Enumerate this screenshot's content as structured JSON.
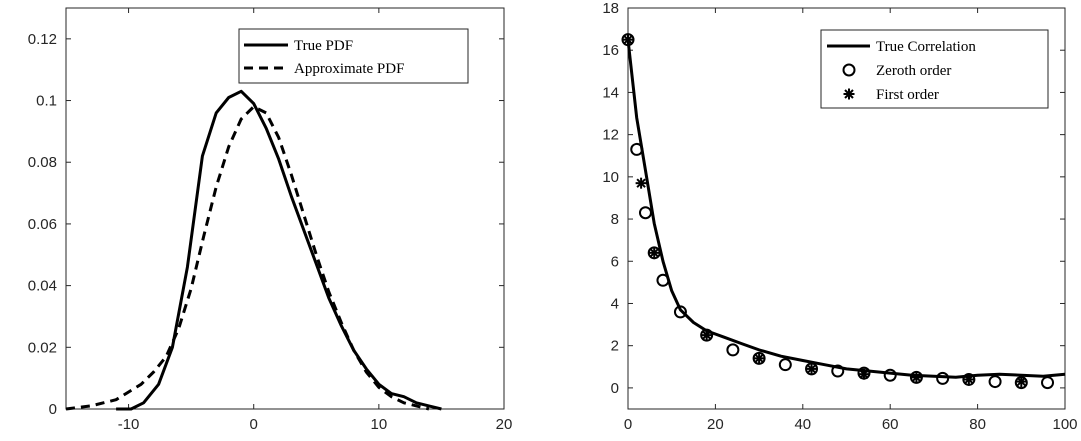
{
  "chart_data": [
    {
      "type": "line",
      "xlim": [
        -15,
        20
      ],
      "ylim": [
        0,
        0.13
      ],
      "xticks": [
        -10,
        0,
        10,
        20
      ],
      "xtick_labels": [
        "-10",
        "0",
        "10",
        "20"
      ],
      "yticks": [
        0,
        0.02,
        0.04,
        0.06,
        0.08,
        0.1,
        0.12
      ],
      "ytick_labels": [
        "0",
        "0.02",
        "0.04",
        "0.06",
        "0.08",
        "0.1",
        "0.12"
      ],
      "grid": false,
      "legend_position": "top-right",
      "series": [
        {
          "name": "True PDF",
          "style": "solid",
          "x": [
            -11,
            -9.8,
            -8.8,
            -7.6,
            -6.5,
            -5.3,
            -4.1,
            -3,
            -2,
            -1,
            0,
            1,
            2,
            3,
            4,
            5,
            6,
            7,
            8,
            9,
            10,
            11,
            12,
            13,
            14,
            15
          ],
          "y": [
            0,
            0,
            0.002,
            0.008,
            0.02,
            0.046,
            0.082,
            0.096,
            0.101,
            0.103,
            0.099,
            0.091,
            0.081,
            0.069,
            0.058,
            0.047,
            0.036,
            0.027,
            0.019,
            0.013,
            0.008,
            0.005,
            0.004,
            0.002,
            0.001,
            0
          ]
        },
        {
          "name": "Approximate PDF",
          "style": "dashed",
          "x": [
            -15,
            -13,
            -11,
            -9,
            -8,
            -7,
            -6,
            -5,
            -4,
            -3,
            -2,
            -1,
            0,
            1,
            2,
            3,
            4,
            5,
            6,
            7,
            8,
            9,
            10,
            11,
            12,
            13,
            14
          ],
          "y": [
            0,
            0.001,
            0.003,
            0.008,
            0.012,
            0.017,
            0.026,
            0.039,
            0.056,
            0.072,
            0.085,
            0.094,
            0.098,
            0.096,
            0.088,
            0.076,
            0.063,
            0.05,
            0.038,
            0.028,
            0.019,
            0.012,
            0.007,
            0.004,
            0.002,
            0.001,
            0
          ]
        }
      ]
    },
    {
      "type": "line",
      "xlim": [
        0,
        100
      ],
      "ylim": [
        -1,
        18
      ],
      "xticks": [
        0,
        20,
        40,
        60,
        80,
        100
      ],
      "xtick_labels": [
        "0",
        "20",
        "40",
        "60",
        "80",
        "100"
      ],
      "yticks": [
        0,
        2,
        4,
        6,
        8,
        10,
        12,
        14,
        16,
        18
      ],
      "ytick_labels": [
        "0",
        "2",
        "4",
        "6",
        "8",
        "10",
        "12",
        "14",
        "16",
        "18"
      ],
      "grid": false,
      "legend_position": "top-right",
      "series": [
        {
          "name": "True Correlation",
          "style": "solid",
          "x": [
            0,
            2,
            4,
            6,
            8,
            10,
            12,
            15,
            18,
            22,
            26,
            30,
            35,
            40,
            45,
            50,
            55,
            60,
            65,
            70,
            75,
            80,
            85,
            90,
            95,
            100
          ],
          "y": [
            16.5,
            12.8,
            10.3,
            7.8,
            6,
            4.6,
            3.7,
            3.1,
            2.7,
            2.4,
            2.1,
            1.8,
            1.5,
            1.3,
            1.1,
            0.9,
            0.8,
            0.7,
            0.6,
            0.55,
            0.5,
            0.6,
            0.65,
            0.6,
            0.55,
            0.65
          ]
        },
        {
          "name": "Zeroth order",
          "style": "marker-circle",
          "x": [
            0,
            2,
            4,
            6,
            8,
            12,
            18,
            24,
            30,
            36,
            42,
            48,
            54,
            60,
            66,
            72,
            78,
            84,
            90,
            96
          ],
          "y": [
            16.5,
            11.3,
            8.3,
            6.4,
            5.1,
            3.6,
            2.5,
            1.8,
            1.4,
            1.1,
            0.9,
            0.8,
            0.7,
            0.6,
            0.5,
            0.45,
            0.4,
            0.3,
            0.25,
            0.25
          ]
        },
        {
          "name": "First order",
          "style": "marker-asterisk",
          "x": [
            0,
            3,
            6,
            18,
            30,
            42,
            54,
            66,
            78,
            90
          ],
          "y": [
            16.5,
            9.7,
            6.4,
            2.5,
            1.4,
            0.9,
            0.65,
            0.5,
            0.4,
            0.3
          ]
        }
      ]
    }
  ]
}
